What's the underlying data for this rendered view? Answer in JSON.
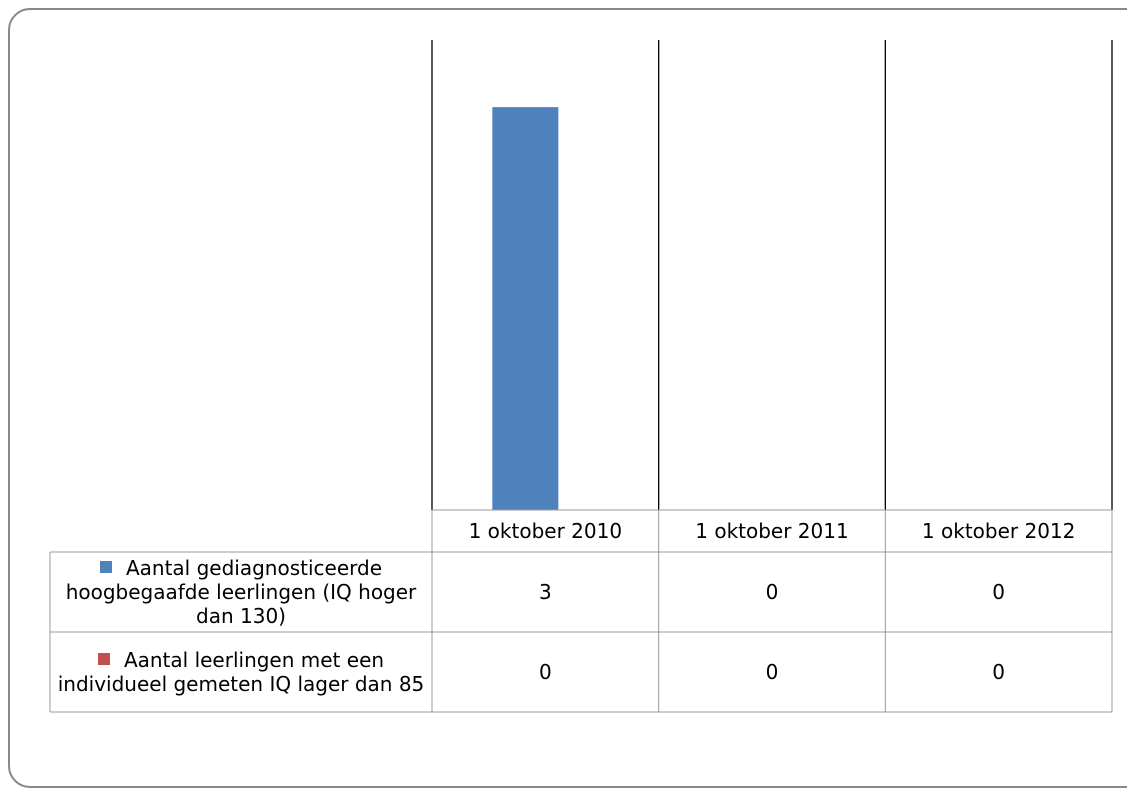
{
  "chart_data": {
    "type": "bar",
    "categories": [
      "1 oktober 2010",
      "1 oktober 2011",
      "1 oktober 2012"
    ],
    "series": [
      {
        "name": "Aantal gediagnosticeerde hoogbegaafde leerlingen (IQ hoger dan 130)",
        "color": "#4f81bd",
        "values": [
          3,
          0,
          0
        ]
      },
      {
        "name": "Aantal leerlingen met een individueel gemeten IQ lager dan 85",
        "color": "#c0504d",
        "values": [
          0,
          0,
          0
        ]
      }
    ],
    "ylim": [
      0,
      3.5
    ],
    "data_table": true
  }
}
